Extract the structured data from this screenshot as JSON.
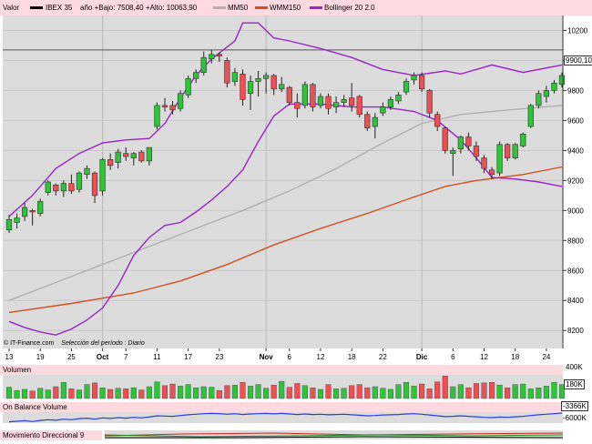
{
  "header": {
    "label": "Valor",
    "ticker": "IBEX 35",
    "stats": "año +Bajo: 7508,40 +Alto: 10063,90",
    "legend": [
      {
        "name": "MM50",
        "color": "#b0b0b0"
      },
      {
        "name": "WMM150",
        "color": "#d2501e"
      },
      {
        "name": "Bollinger 20 2.0",
        "color": "#9a24c8"
      }
    ]
  },
  "footer": {
    "credit": "© IT-Finance.com",
    "period": "Selección del período : Diario"
  },
  "last_value": "9900,10",
  "panels": {
    "volume": {
      "title": "Volumen",
      "ticks": [
        "400K",
        "180K"
      ]
    },
    "obv": {
      "title": "On Balance Volume",
      "ticks": [
        "-3366K",
        "-6000K"
      ]
    },
    "dmi": {
      "title": "Movimiento Direccional 9"
    }
  },
  "chart_data": {
    "type": "candlestick",
    "title": "IBEX 35",
    "y_ticks": [
      8200,
      8400,
      8600,
      8800,
      9000,
      9200,
      9400,
      9600,
      9800,
      10000,
      10200
    ],
    "y_tick_labels": [
      "8200",
      "8400",
      "8600",
      "8800",
      "9000",
      "9200",
      "9400",
      "9600",
      "9800",
      "10000",
      "10200"
    ],
    "ylim": [
      8080,
      10300
    ],
    "x_tick_labels": [
      {
        "i": 0,
        "label": "13"
      },
      {
        "i": 4,
        "label": "19"
      },
      {
        "i": 8,
        "label": "25"
      },
      {
        "i": 12,
        "label": "Oct",
        "bold": true
      },
      {
        "i": 15,
        "label": "7"
      },
      {
        "i": 19,
        "label": "11"
      },
      {
        "i": 23,
        "label": "17"
      },
      {
        "i": 27,
        "label": "23"
      },
      {
        "i": 33,
        "label": "Nov",
        "bold": true
      },
      {
        "i": 36,
        "label": "6"
      },
      {
        "i": 40,
        "label": "12"
      },
      {
        "i": 44,
        "label": "18"
      },
      {
        "i": 48,
        "label": "22"
      },
      {
        "i": 53,
        "label": "Dic",
        "bold": true
      },
      {
        "i": 57,
        "label": "6"
      },
      {
        "i": 61,
        "label": "12"
      },
      {
        "i": 65,
        "label": "18"
      },
      {
        "i": 69,
        "label": "24"
      }
    ],
    "x_month_separators": [
      12,
      33,
      53
    ],
    "reference_line": 10070,
    "candles": [
      {
        "o": 8870,
        "h": 8970,
        "l": 8850,
        "c": 8940
      },
      {
        "o": 8920,
        "h": 8980,
        "l": 8880,
        "c": 8950
      },
      {
        "o": 8960,
        "h": 9050,
        "l": 8930,
        "c": 9020
      },
      {
        "o": 9000,
        "h": 9010,
        "l": 8900,
        "c": 8990
      },
      {
        "o": 8980,
        "h": 9080,
        "l": 8960,
        "c": 9060
      },
      {
        "o": 9120,
        "h": 9200,
        "l": 9100,
        "c": 9190
      },
      {
        "o": 9170,
        "h": 9180,
        "l": 9100,
        "c": 9130
      },
      {
        "o": 9130,
        "h": 9200,
        "l": 9090,
        "c": 9180
      },
      {
        "o": 9180,
        "h": 9240,
        "l": 9110,
        "c": 9130
      },
      {
        "o": 9140,
        "h": 9260,
        "l": 9120,
        "c": 9250
      },
      {
        "o": 9240,
        "h": 9300,
        "l": 9210,
        "c": 9280
      },
      {
        "o": 9250,
        "h": 9260,
        "l": 9050,
        "c": 9100
      },
      {
        "o": 9130,
        "h": 9350,
        "l": 9100,
        "c": 9340
      },
      {
        "o": 9340,
        "h": 9380,
        "l": 9270,
        "c": 9300
      },
      {
        "o": 9320,
        "h": 9410,
        "l": 9280,
        "c": 9390
      },
      {
        "o": 9380,
        "h": 9420,
        "l": 9330,
        "c": 9360
      },
      {
        "o": 9350,
        "h": 9390,
        "l": 9300,
        "c": 9380
      },
      {
        "o": 9390,
        "h": 9400,
        "l": 9320,
        "c": 9330
      },
      {
        "o": 9330,
        "h": 9420,
        "l": 9300,
        "c": 9420
      },
      {
        "o": 9560,
        "h": 9720,
        "l": 9540,
        "c": 9700
      },
      {
        "o": 9700,
        "h": 9750,
        "l": 9660,
        "c": 9690
      },
      {
        "o": 9700,
        "h": 9730,
        "l": 9640,
        "c": 9670
      },
      {
        "o": 9680,
        "h": 9800,
        "l": 9660,
        "c": 9780
      },
      {
        "o": 9770,
        "h": 9900,
        "l": 9750,
        "c": 9880
      },
      {
        "o": 9880,
        "h": 9940,
        "l": 9850,
        "c": 9920
      },
      {
        "o": 9920,
        "h": 10060,
        "l": 9900,
        "c": 10020
      },
      {
        "o": 10010,
        "h": 10070,
        "l": 9980,
        "c": 10040
      },
      {
        "o": 10040,
        "h": 10050,
        "l": 9990,
        "c": 10030
      },
      {
        "o": 10000,
        "h": 10020,
        "l": 9820,
        "c": 9850
      },
      {
        "o": 9860,
        "h": 9950,
        "l": 9830,
        "c": 9920
      },
      {
        "o": 9910,
        "h": 9940,
        "l": 9700,
        "c": 9740
      },
      {
        "o": 9780,
        "h": 9900,
        "l": 9670,
        "c": 9860
      },
      {
        "o": 9860,
        "h": 9930,
        "l": 9760,
        "c": 9880
      },
      {
        "o": 9880,
        "h": 9920,
        "l": 9780,
        "c": 9900
      },
      {
        "o": 9900,
        "h": 9910,
        "l": 9770,
        "c": 9810
      },
      {
        "o": 9810,
        "h": 9890,
        "l": 9790,
        "c": 9840
      },
      {
        "o": 9820,
        "h": 9830,
        "l": 9700,
        "c": 9720
      },
      {
        "o": 9720,
        "h": 9780,
        "l": 9620,
        "c": 9680
      },
      {
        "o": 9700,
        "h": 9860,
        "l": 9680,
        "c": 9840
      },
      {
        "o": 9840,
        "h": 9850,
        "l": 9660,
        "c": 9690
      },
      {
        "o": 9700,
        "h": 9780,
        "l": 9680,
        "c": 9760
      },
      {
        "o": 9760,
        "h": 9780,
        "l": 9640,
        "c": 9680
      },
      {
        "o": 9690,
        "h": 9760,
        "l": 9650,
        "c": 9720
      },
      {
        "o": 9720,
        "h": 9770,
        "l": 9690,
        "c": 9740
      },
      {
        "o": 9750,
        "h": 9850,
        "l": 9660,
        "c": 9700
      },
      {
        "o": 9760,
        "h": 9770,
        "l": 9620,
        "c": 9640
      },
      {
        "o": 9640,
        "h": 9660,
        "l": 9530,
        "c": 9550
      },
      {
        "o": 9560,
        "h": 9650,
        "l": 9480,
        "c": 9620
      },
      {
        "o": 9650,
        "h": 9720,
        "l": 9630,
        "c": 9690
      },
      {
        "o": 9690,
        "h": 9760,
        "l": 9670,
        "c": 9740
      },
      {
        "o": 9730,
        "h": 9790,
        "l": 9710,
        "c": 9770
      },
      {
        "o": 9790,
        "h": 9880,
        "l": 9770,
        "c": 9860
      },
      {
        "o": 9870,
        "h": 9920,
        "l": 9840,
        "c": 9900
      },
      {
        "o": 9900,
        "h": 9920,
        "l": 9790,
        "c": 9810
      },
      {
        "o": 9800,
        "h": 9810,
        "l": 9620,
        "c": 9650
      },
      {
        "o": 9640,
        "h": 9660,
        "l": 9530,
        "c": 9560
      },
      {
        "o": 9550,
        "h": 9560,
        "l": 9380,
        "c": 9400
      },
      {
        "o": 9380,
        "h": 9420,
        "l": 9230,
        "c": 9400
      },
      {
        "o": 9410,
        "h": 9500,
        "l": 9380,
        "c": 9490
      },
      {
        "o": 9490,
        "h": 9520,
        "l": 9400,
        "c": 9430
      },
      {
        "o": 9430,
        "h": 9460,
        "l": 9330,
        "c": 9360
      },
      {
        "o": 9350,
        "h": 9370,
        "l": 9250,
        "c": 9280
      },
      {
        "o": 9270,
        "h": 9290,
        "l": 9210,
        "c": 9240
      },
      {
        "o": 9250,
        "h": 9460,
        "l": 9230,
        "c": 9440
      },
      {
        "o": 9440,
        "h": 9450,
        "l": 9330,
        "c": 9350
      },
      {
        "o": 9350,
        "h": 9450,
        "l": 9340,
        "c": 9440
      },
      {
        "o": 9430,
        "h": 9520,
        "l": 9420,
        "c": 9510
      },
      {
        "o": 9560,
        "h": 9710,
        "l": 9550,
        "c": 9700
      },
      {
        "o": 9700,
        "h": 9800,
        "l": 9680,
        "c": 9780
      },
      {
        "o": 9760,
        "h": 9830,
        "l": 9720,
        "c": 9800
      },
      {
        "o": 9800,
        "h": 9870,
        "l": 9780,
        "c": 9850
      },
      {
        "o": 9840,
        "h": 9920,
        "l": 9820,
        "c": 9900
      }
    ],
    "series": [
      {
        "name": "MM50",
        "color": "#b0b0b0",
        "points": [
          [
            0,
            8400
          ],
          [
            6,
            8520
          ],
          [
            12,
            8640
          ],
          [
            18,
            8760
          ],
          [
            24,
            8880
          ],
          [
            30,
            9000
          ],
          [
            36,
            9130
          ],
          [
            42,
            9280
          ],
          [
            48,
            9450
          ],
          [
            53,
            9580
          ],
          [
            58,
            9640
          ],
          [
            64,
            9670
          ],
          [
            71,
            9700
          ]
        ]
      },
      {
        "name": "WMM150",
        "color": "#d2501e",
        "points": [
          [
            0,
            8320
          ],
          [
            8,
            8380
          ],
          [
            16,
            8450
          ],
          [
            22,
            8530
          ],
          [
            28,
            8640
          ],
          [
            34,
            8770
          ],
          [
            40,
            8880
          ],
          [
            46,
            8980
          ],
          [
            52,
            9090
          ],
          [
            56,
            9160
          ],
          [
            60,
            9200
          ],
          [
            66,
            9240
          ],
          [
            71,
            9290
          ]
        ]
      },
      {
        "name": "Bollinger 20 2.0 (superior)",
        "color": "#9a24c8",
        "points": [
          [
            0,
            8960
          ],
          [
            3,
            9100
          ],
          [
            6,
            9280
          ],
          [
            9,
            9380
          ],
          [
            12,
            9450
          ],
          [
            15,
            9470
          ],
          [
            18,
            9480
          ],
          [
            20,
            9580
          ],
          [
            22,
            9750
          ],
          [
            24,
            9900
          ],
          [
            26,
            10010
          ],
          [
            28,
            10090
          ],
          [
            29,
            10130
          ],
          [
            30,
            10250
          ],
          [
            32,
            10250
          ],
          [
            34,
            10150
          ],
          [
            36,
            10130
          ],
          [
            40,
            10080
          ],
          [
            44,
            10020
          ],
          [
            48,
            9940
          ],
          [
            52,
            9900
          ],
          [
            56,
            9930
          ],
          [
            58,
            9910
          ],
          [
            62,
            9970
          ],
          [
            66,
            9920
          ],
          [
            71,
            9970
          ]
        ]
      },
      {
        "name": "Bollinger 20 2.0 (inferior)",
        "color": "#9a24c8",
        "points": [
          [
            0,
            8260
          ],
          [
            2,
            8220
          ],
          [
            4,
            8190
          ],
          [
            6,
            8170
          ],
          [
            8,
            8210
          ],
          [
            10,
            8270
          ],
          [
            12,
            8350
          ],
          [
            14,
            8500
          ],
          [
            16,
            8700
          ],
          [
            18,
            8820
          ],
          [
            20,
            8900
          ],
          [
            22,
            8920
          ],
          [
            24,
            8990
          ],
          [
            26,
            9070
          ],
          [
            28,
            9160
          ],
          [
            30,
            9270
          ],
          [
            32,
            9460
          ],
          [
            34,
            9630
          ],
          [
            36,
            9710
          ],
          [
            40,
            9710
          ],
          [
            44,
            9690
          ],
          [
            48,
            9690
          ],
          [
            52,
            9660
          ],
          [
            55,
            9600
          ],
          [
            58,
            9470
          ],
          [
            60,
            9350
          ],
          [
            62,
            9220
          ],
          [
            65,
            9210
          ],
          [
            68,
            9190
          ],
          [
            71,
            9160
          ]
        ]
      }
    ],
    "volume": [
      210,
      150,
      170,
      140,
      190,
      160,
      220,
      300,
      180,
      160,
      260,
      290,
      200,
      170,
      190,
      180,
      200,
      160,
      220,
      310,
      240,
      270,
      230,
      260,
      200,
      220,
      210,
      150,
      240,
      250,
      300,
      230,
      260,
      190,
      250,
      320,
      210,
      280,
      240,
      200,
      170,
      260,
      180,
      190,
      240,
      260,
      200,
      220,
      190,
      170,
      260,
      300,
      230,
      270,
      180,
      310,
      420,
      220,
      260,
      200,
      280,
      290,
      300,
      250,
      200,
      260,
      270,
      180,
      200,
      230,
      300,
      260
    ],
    "volume_colors": "green for up days, red for down days",
    "obv": [
      -3700,
      -3680,
      -3660,
      -3690,
      -3650,
      -3620,
      -3640,
      -3600,
      -3620,
      -3580,
      -3560,
      -3600,
      -3550,
      -3570,
      -3540,
      -3560,
      -3530,
      -3550,
      -3520,
      -3470,
      -3480,
      -3490,
      -3460,
      -3430,
      -3410,
      -3390,
      -3380,
      -3385,
      -3410,
      -3390,
      -3420,
      -3400,
      -3390,
      -3380,
      -3395,
      -3380,
      -3400,
      -3420,
      -3400,
      -3420,
      -3410,
      -3430,
      -3420,
      -3410,
      -3430,
      -3450,
      -3470,
      -3460,
      -3440,
      -3430,
      -3420,
      -3400,
      -3390,
      -3410,
      -3440,
      -3470,
      -3500,
      -3490,
      -3470,
      -3490,
      -3510,
      -3530,
      -3540,
      -3520,
      -3530,
      -3510,
      -3490,
      -3460,
      -3430,
      -3410,
      -3390,
      -3366
    ]
  }
}
